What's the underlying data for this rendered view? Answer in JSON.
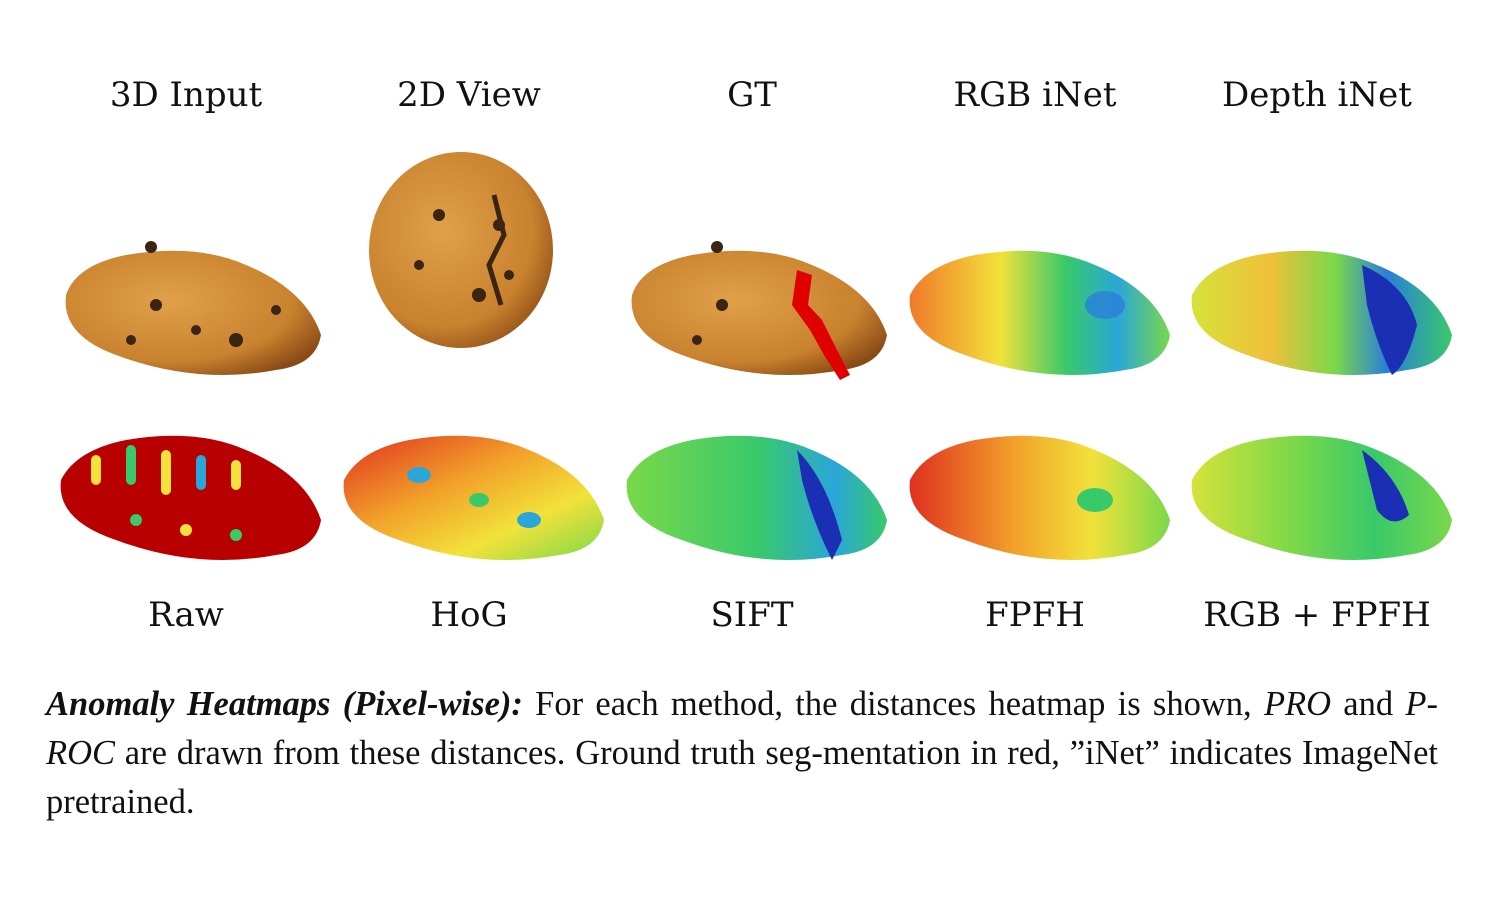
{
  "top_labels": [
    "3D Input",
    "2D View",
    "GT",
    "RGB iNet",
    "Depth iNet"
  ],
  "bottom_labels": [
    "Raw",
    "HoG",
    "SIFT",
    "FPFH",
    "RGB + FPFH"
  ],
  "caption": {
    "heading": "Anomaly Heatmaps (Pixel-wise):",
    "text_1": " For each method, the distances heatmap is shown, ",
    "term_1": "PRO",
    "text_2": " and ",
    "term_2": "P-ROC",
    "text_3": " are drawn from these distances. Ground truth seg-mentation in red, ”iNet” indicates ImageNet pretrained."
  },
  "colors": {
    "cookie": "#c9822e",
    "cookie_dark": "#8a4a16",
    "chip": "#3a2413",
    "gt_defect": "#e00000",
    "heat_low": "#1b2fb5",
    "heat_mid": "#39c96a",
    "heat_warm": "#f2e23a",
    "heat_high": "#b80000"
  }
}
